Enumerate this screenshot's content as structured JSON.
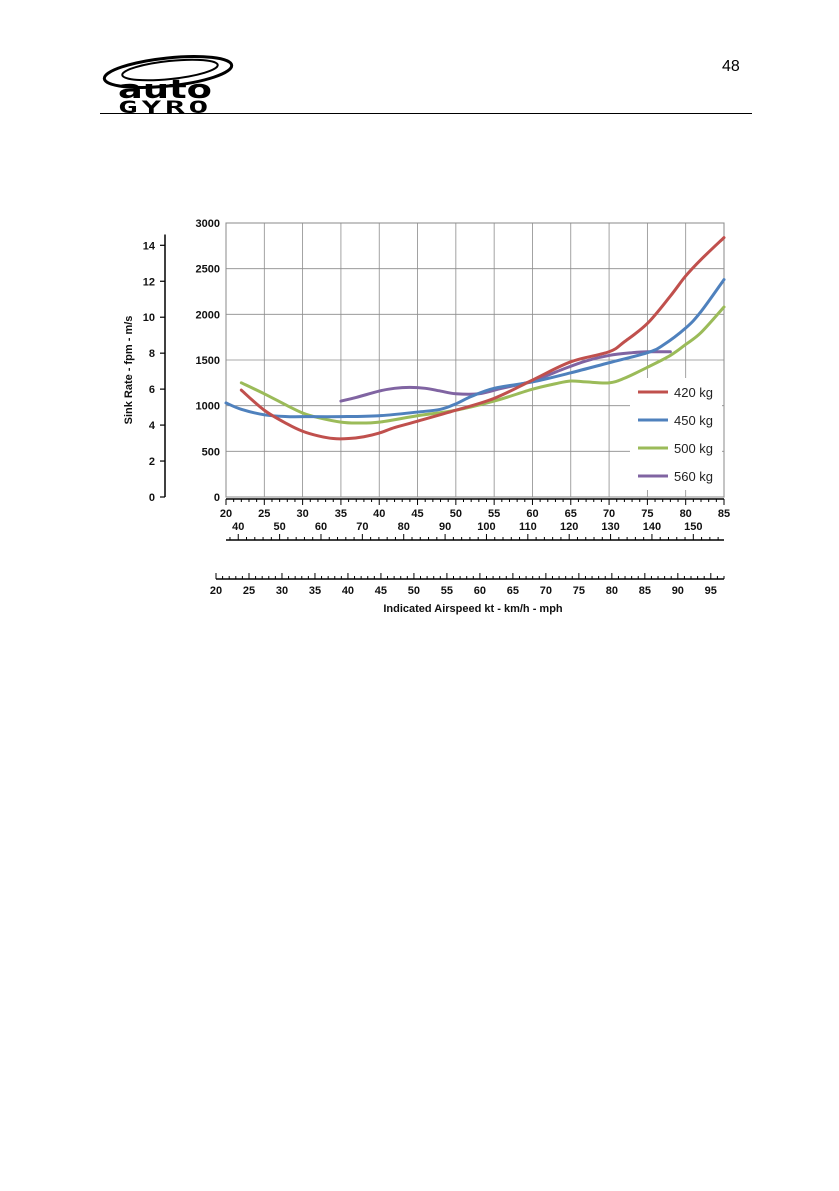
{
  "header": {
    "page_number": "48",
    "logo": {
      "name": "autogyro-logo",
      "line1": "auto",
      "line2": "GYRO"
    }
  },
  "colors": {
    "420": "#c0504d",
    "450": "#4f81bd",
    "500": "#9bbb59",
    "560": "#8064a2"
  },
  "chart_data": {
    "type": "line",
    "ylabel": "Sink Rate - fpm - m/s",
    "xlabel": "Indicated Airspeed kt - km/h  - mph",
    "xlim": [
      20,
      85
    ],
    "ylim": [
      0,
      3000
    ],
    "x_ticks_kt": [
      20,
      25,
      30,
      35,
      40,
      45,
      50,
      55,
      60,
      65,
      70,
      75,
      80,
      85
    ],
    "y_ticks_fpm": [
      0,
      500,
      1000,
      1500,
      2000,
      2500,
      3000
    ],
    "y_ticks_ms": [
      0,
      2,
      4,
      6,
      8,
      10,
      12,
      14
    ],
    "x_ticks_kmh": [
      40,
      50,
      60,
      70,
      80,
      90,
      100,
      110,
      120,
      130,
      140,
      150
    ],
    "x_ticks_mph": [
      20,
      25,
      30,
      35,
      40,
      45,
      50,
      55,
      60,
      65,
      70,
      75,
      80,
      85,
      90,
      95
    ],
    "grid": true,
    "legend_position": "right",
    "series": [
      {
        "name": "420 kg",
        "color": "#c0504d",
        "x": [
          22,
          25,
          28,
          30,
          32,
          34,
          36,
          38,
          40,
          42,
          45,
          50,
          55,
          60,
          65,
          70,
          72,
          75,
          78,
          80,
          82,
          85
        ],
        "y": [
          1170,
          950,
          800,
          720,
          670,
          640,
          640,
          660,
          700,
          760,
          830,
          950,
          1080,
          1280,
          1480,
          1590,
          1700,
          1900,
          2200,
          2420,
          2600,
          2840
        ]
      },
      {
        "name": "450 kg",
        "color": "#4f81bd",
        "x": [
          20,
          22,
          25,
          28,
          30,
          35,
          40,
          45,
          48,
          50,
          52,
          55,
          60,
          65,
          70,
          75,
          77,
          80,
          82,
          85
        ],
        "y": [
          1030,
          960,
          900,
          880,
          880,
          880,
          890,
          930,
          960,
          1020,
          1100,
          1190,
          1260,
          1360,
          1470,
          1580,
          1660,
          1850,
          2030,
          2380
        ]
      },
      {
        "name": "500 kg",
        "color": "#9bbb59",
        "x": [
          22,
          25,
          28,
          30,
          32,
          35,
          37,
          40,
          45,
          50,
          55,
          60,
          63,
          65,
          67,
          70,
          72,
          75,
          78,
          80,
          82,
          85
        ],
        "y": [
          1250,
          1130,
          1000,
          920,
          870,
          820,
          810,
          820,
          890,
          950,
          1050,
          1180,
          1240,
          1270,
          1260,
          1250,
          1300,
          1420,
          1550,
          1670,
          1800,
          2080
        ]
      },
      {
        "name": "560 kg",
        "color": "#8064a2",
        "x": [
          35,
          37,
          40,
          42,
          44,
          46,
          48,
          50,
          53,
          56,
          60,
          64,
          67,
          70,
          73,
          75,
          78
        ],
        "y": [
          1050,
          1090,
          1160,
          1190,
          1200,
          1190,
          1160,
          1130,
          1130,
          1190,
          1270,
          1400,
          1490,
          1550,
          1580,
          1590,
          1590
        ]
      }
    ]
  }
}
